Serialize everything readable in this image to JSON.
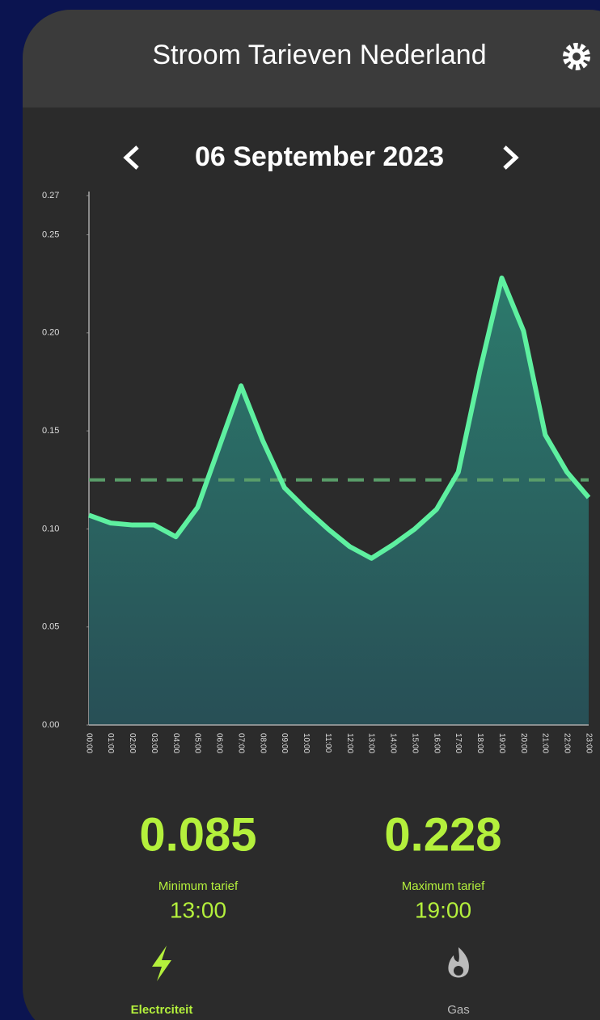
{
  "header": {
    "title": "Stroom Tarieven Nederland"
  },
  "date_nav": {
    "date": "06 September 2023"
  },
  "chart_data": {
    "type": "area",
    "categories": [
      "00:00",
      "01:00",
      "02:00",
      "03:00",
      "04:00",
      "05:00",
      "06:00",
      "07:00",
      "08:00",
      "09:00",
      "10:00",
      "11:00",
      "12:00",
      "13:00",
      "14:00",
      "15:00",
      "16:00",
      "17:00",
      "18:00",
      "19:00",
      "20:00",
      "21:00",
      "22:00",
      "23:00"
    ],
    "values": [
      0.107,
      0.103,
      0.102,
      0.102,
      0.096,
      0.111,
      0.142,
      0.173,
      0.145,
      0.121,
      0.11,
      0.1,
      0.091,
      0.085,
      0.092,
      0.1,
      0.11,
      0.129,
      0.181,
      0.228,
      0.201,
      0.148,
      0.129,
      0.116
    ],
    "color": "#5ef0a0",
    "average_line": 0.125,
    "ylim": [
      0,
      0.27
    ],
    "yticks": [
      {
        "value": 0,
        "label": "0.00"
      },
      0.05,
      {
        "value": 0.1,
        "label": "0.10"
      },
      0.15,
      {
        "value": 0.2,
        "label": "0.20"
      },
      0.25,
      0.27
    ]
  },
  "stats": [
    {
      "value": 0.085,
      "label": "Minimum tarief",
      "time": "13:00"
    },
    {
      "value": 0.228,
      "label": "Maximum tarief",
      "time": "19:00"
    }
  ],
  "nav": [
    {
      "label": "Electrciteit"
    },
    {
      "label": "Gas"
    }
  ]
}
